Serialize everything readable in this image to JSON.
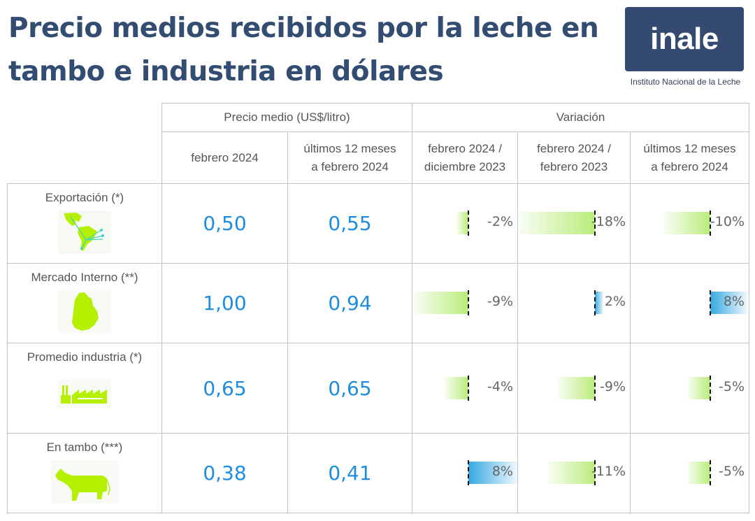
{
  "header": {
    "title_line1": "Precio medios recibidos por la leche en",
    "title_line2": "tambo e industria en dólares",
    "logo_text": "inale",
    "logo_subtitle": "Instituto Nacional de la Leche"
  },
  "colors": {
    "title": "#334d72",
    "price_text": "#1e8de0",
    "negative_bar": "#b9ec7a",
    "positive_bar": "#35a9e2",
    "icon_green": "#b5f000"
  },
  "chart_data": {
    "type": "table",
    "title": "Precio medios recibidos por la leche en tambo e industria en dólares",
    "group_headers": [
      "Precio medio (US$/litro)",
      "Variación"
    ],
    "columns": [
      "febrero 2024",
      "últimos 12 meses a febrero 2024",
      "febrero 2024 / diciembre 2023",
      "febrero 2024 / febrero 2023",
      "últimos 12 meses a febrero 2024"
    ],
    "column_headers": [
      {
        "line1": "febrero 2024",
        "line2": ""
      },
      {
        "line1": "últimos 12 meses",
        "line2": "a febrero 2024"
      },
      {
        "line1": "febrero 2024 /",
        "line2": "diciembre 2023"
      },
      {
        "line1": "febrero 2024 /",
        "line2": "febrero 2023"
      },
      {
        "line1": "últimos 12 meses",
        "line2": "a febrero 2024"
      }
    ],
    "rows": [
      {
        "label": "Exportación (*)",
        "icon": "americas-map-icon",
        "price_feb2024": "0,50",
        "price_12m": "0,55",
        "var_feb_dic": -2,
        "var_feb_feb": -18,
        "var_12m": -10
      },
      {
        "label": "Mercado Interno (**)",
        "icon": "uruguay-map-icon",
        "price_feb2024": "1,00",
        "price_12m": "0,94",
        "var_feb_dic": -9,
        "var_feb_feb": 2,
        "var_12m": 8
      },
      {
        "label": "Promedio industria (*)",
        "icon": "factory-icon",
        "price_feb2024": "0,65",
        "price_12m": "0,65",
        "var_feb_dic": -4,
        "var_feb_feb": -9,
        "var_12m": -5
      },
      {
        "label": "En tambo (***)",
        "icon": "cow-icon",
        "price_feb2024": "0,38",
        "price_12m": "0,41",
        "var_feb_dic": 8,
        "var_feb_feb": -11,
        "var_12m": -5
      }
    ],
    "variation_labels": [
      [
        "-2%",
        "-18%",
        "-10%"
      ],
      [
        "-9%",
        "2%",
        "8%"
      ],
      [
        "-4%",
        "-9%",
        "-5%"
      ],
      [
        "8%",
        "-11%",
        "-5%"
      ]
    ],
    "variation_unit": "%"
  }
}
